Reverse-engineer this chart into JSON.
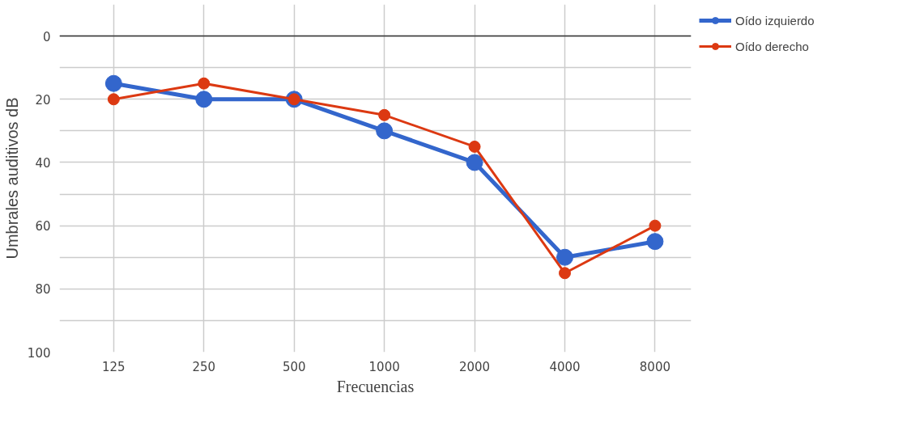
{
  "chart_data": {
    "type": "line",
    "xlabel": "Frecuencias",
    "ylabel": "Umbrales auditivos dB",
    "categories": [
      "125",
      "250",
      "500",
      "1000",
      "2000",
      "4000",
      "8000"
    ],
    "series": [
      {
        "name": "Oído izquierdo",
        "color": "#3366cc",
        "values": [
          15,
          20,
          20,
          30,
          40,
          70,
          65
        ]
      },
      {
        "name": "Oído derecho",
        "color": "#dc3912",
        "values": [
          20,
          15,
          20,
          25,
          35,
          75,
          60
        ]
      }
    ],
    "ylim": [
      100,
      -10
    ],
    "yticks": [
      0,
      {
        "value": 10,
        "label": null
      },
      20,
      {
        "value": 30,
        "label": null
      },
      40,
      {
        "value": 50,
        "label": null
      },
      60,
      {
        "value": 70,
        "label": null
      },
      80,
      {
        "value": 90,
        "label": null
      },
      100
    ],
    "ref_lines": [
      {
        "axis": "y",
        "value": 0,
        "color": "#333333"
      }
    ],
    "grid": true,
    "legend": "top right",
    "marker": "circle",
    "line_style": "solid"
  }
}
